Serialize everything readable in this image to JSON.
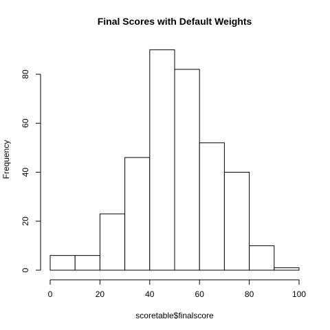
{
  "chart_data": {
    "type": "bar",
    "title": "Final Scores with Default Weights",
    "xlabel": "scoretable$finalscore",
    "ylabel": "Frequency",
    "bins": [
      {
        "start": 0,
        "end": 10,
        "count": 6
      },
      {
        "start": 10,
        "end": 20,
        "count": 6
      },
      {
        "start": 20,
        "end": 30,
        "count": 23
      },
      {
        "start": 30,
        "end": 40,
        "count": 46
      },
      {
        "start": 40,
        "end": 50,
        "count": 90
      },
      {
        "start": 50,
        "end": 60,
        "count": 82
      },
      {
        "start": 60,
        "end": 70,
        "count": 52
      },
      {
        "start": 70,
        "end": 80,
        "count": 40
      },
      {
        "start": 80,
        "end": 90,
        "count": 10
      },
      {
        "start": 90,
        "end": 100,
        "count": 1
      }
    ],
    "xlim": [
      0,
      100
    ],
    "ylim": [
      0,
      90
    ],
    "x_ticks": [
      0,
      20,
      40,
      60,
      80,
      100
    ],
    "y_ticks": [
      0,
      20,
      40,
      60,
      80
    ],
    "grid": false
  }
}
